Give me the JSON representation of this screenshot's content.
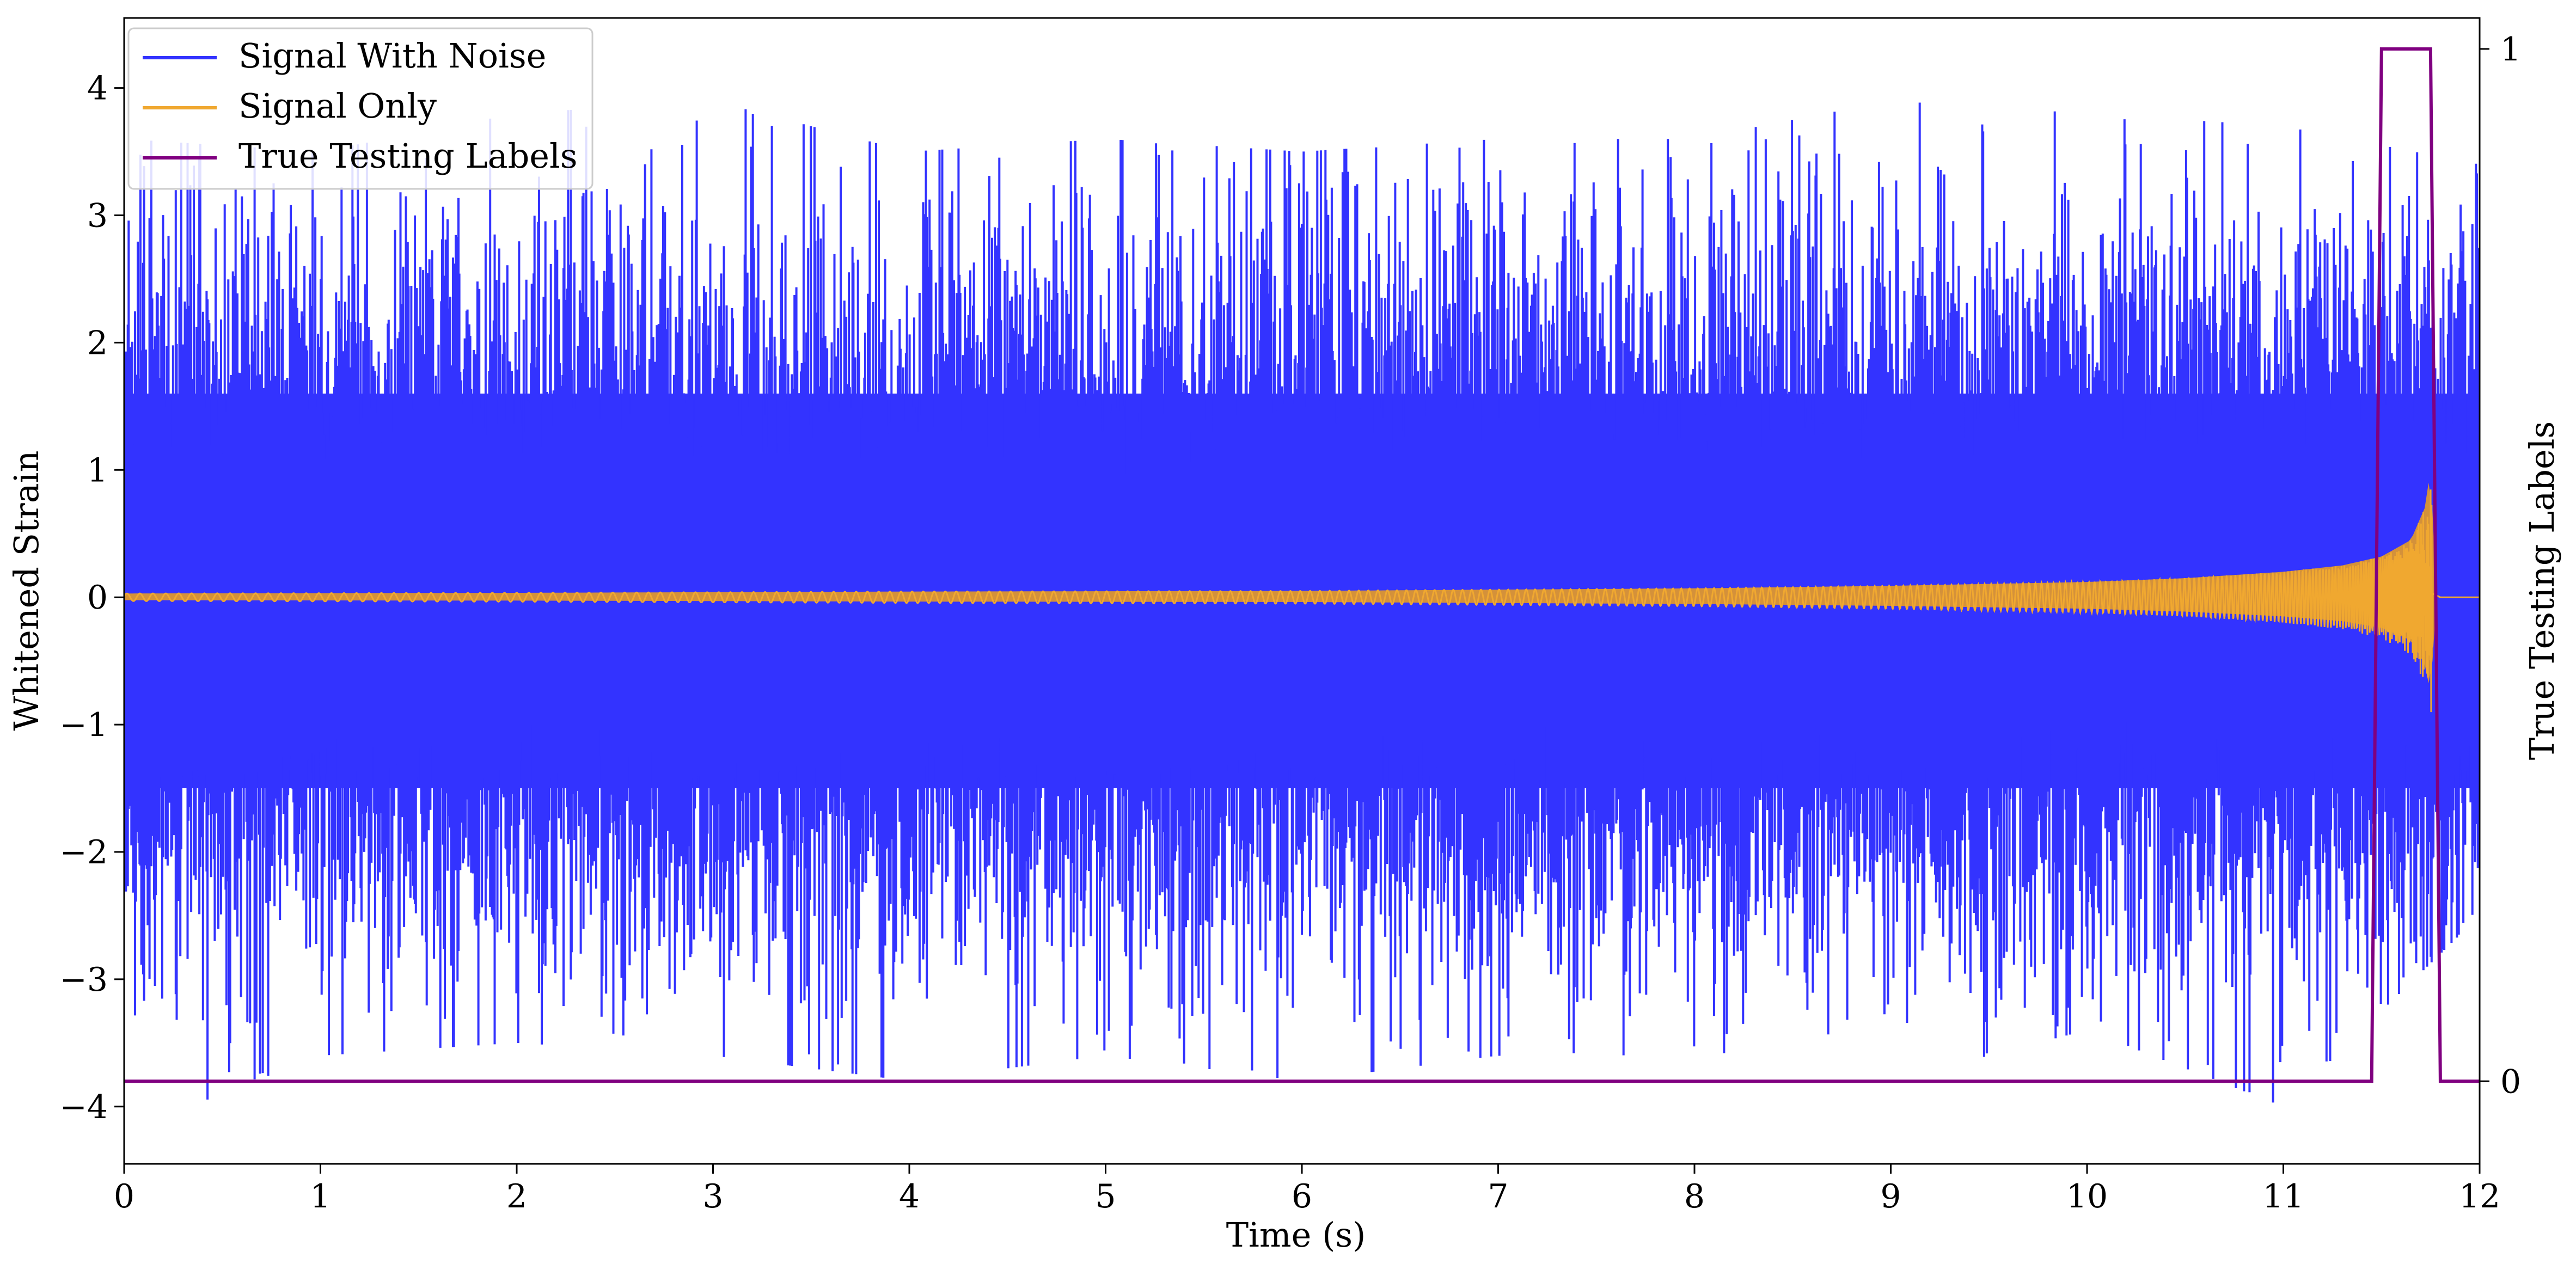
{
  "chart_data": {
    "type": "line",
    "title": "",
    "xlabel": "Time (s)",
    "ylabel": "Whitened Strain",
    "y2label": "True Testing Labels",
    "xlim": [
      0,
      12
    ],
    "ylim": [
      -4.45,
      4.55
    ],
    "y2lim": [
      -0.08,
      1.03
    ],
    "x_ticks": [
      "0",
      "1",
      "2",
      "3",
      "4",
      "5",
      "6",
      "7",
      "8",
      "9",
      "10",
      "11",
      "12"
    ],
    "y_ticks": [
      "−4",
      "−3",
      "−2",
      "−1",
      "0",
      "1",
      "2",
      "3",
      "4"
    ],
    "y2_ticks": [
      "0",
      "1"
    ],
    "grid": false,
    "legend_position": "top-left",
    "colors": {
      "noise": "#3333ff",
      "signal": "#f0a830",
      "signal_fill": "#d4913a",
      "labels": "#800080"
    },
    "series": [
      {
        "name": "Signal With Noise",
        "axis": "left",
        "description": "dense whitened detector strain, roughly gaussian, peaks near ±4",
        "envelope_x": [
          0,
          1,
          2,
          3,
          4,
          5,
          6,
          7,
          8,
          9,
          10,
          11,
          12
        ],
        "envelope_upper": [
          3.6,
          3.5,
          3.8,
          3.9,
          3.5,
          3.6,
          3.5,
          3.6,
          3.6,
          3.9,
          3.8,
          3.7,
          3.4
        ],
        "envelope_lower": [
          -4.2,
          -3.6,
          -3.5,
          -3.6,
          -3.8,
          -3.6,
          -3.8,
          -3.6,
          -3.8,
          -3.8,
          -3.4,
          -4.0,
          -2.5
        ],
        "core_band": [
          -1.5,
          1.6
        ]
      },
      {
        "name": "Signal Only",
        "axis": "left",
        "description": "chirp waveform with growing amplitude, merger near 11.75 s",
        "x": [
          0,
          2,
          4,
          6,
          8,
          9,
          10,
          10.5,
          11,
          11.3,
          11.5,
          11.65,
          11.72,
          11.75,
          11.78,
          12
        ],
        "amplitude": [
          0.03,
          0.035,
          0.045,
          0.05,
          0.07,
          0.09,
          0.12,
          0.15,
          0.2,
          0.25,
          0.32,
          0.45,
          0.7,
          1.0,
          0,
          0
        ]
      },
      {
        "name": "True Testing Labels",
        "axis": "right",
        "x": [
          0,
          11.45,
          11.5,
          11.75,
          11.8,
          12
        ],
        "values": [
          0,
          0,
          1,
          1,
          0,
          0
        ]
      }
    ]
  }
}
